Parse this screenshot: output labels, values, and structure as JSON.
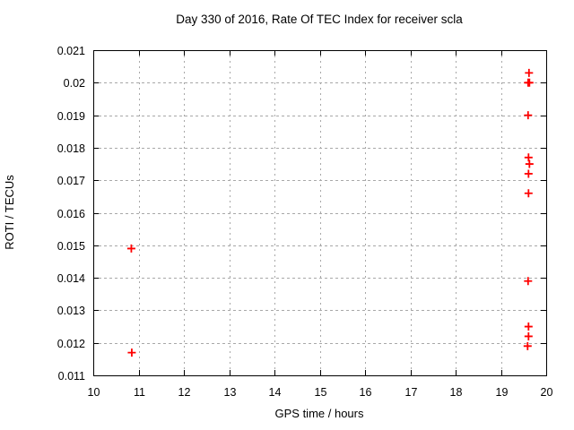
{
  "chart_data": {
    "type": "scatter",
    "title": "Day 330 of 2016, Rate Of TEC Index for receiver scla",
    "xlabel": "GPS time / hours",
    "ylabel": "ROTI / TECUs",
    "xlim": [
      10,
      20
    ],
    "ylim": [
      0.011,
      0.021
    ],
    "xticks": [
      {
        "value": 10,
        "label": "10"
      },
      {
        "value": 11,
        "label": "11"
      },
      {
        "value": 12,
        "label": "12"
      },
      {
        "value": 13,
        "label": "13"
      },
      {
        "value": 14,
        "label": "14"
      },
      {
        "value": 15,
        "label": "15"
      },
      {
        "value": 16,
        "label": "16"
      },
      {
        "value": 17,
        "label": "17"
      },
      {
        "value": 18,
        "label": "18"
      },
      {
        "value": 19,
        "label": "19"
      },
      {
        "value": 20,
        "label": "20"
      }
    ],
    "yticks": [
      {
        "value": 0.011,
        "label": "0.011"
      },
      {
        "value": 0.012,
        "label": "0.012"
      },
      {
        "value": 0.013,
        "label": "0.013"
      },
      {
        "value": 0.014,
        "label": "0.014"
      },
      {
        "value": 0.015,
        "label": "0.015"
      },
      {
        "value": 0.016,
        "label": "0.016"
      },
      {
        "value": 0.017,
        "label": "0.017"
      },
      {
        "value": 0.018,
        "label": "0.018"
      },
      {
        "value": 0.019,
        "label": "0.019"
      },
      {
        "value": 0.02,
        "label": "0.02"
      },
      {
        "value": 0.021,
        "label": "0.021"
      }
    ],
    "grid": true,
    "legend": "none",
    "marker": {
      "shape": "plus",
      "color": "#ff0000",
      "size": 9
    },
    "series": [
      {
        "name": "ROTI",
        "points": [
          [
            10.84,
            0.0149
          ],
          [
            10.85,
            0.0117
          ],
          [
            19.62,
            0.0203
          ],
          [
            19.6,
            0.02
          ],
          [
            19.63,
            0.02
          ],
          [
            19.6,
            0.019
          ],
          [
            19.61,
            0.0177
          ],
          [
            19.63,
            0.0175
          ],
          [
            19.61,
            0.0172
          ],
          [
            19.61,
            0.0166
          ],
          [
            19.6,
            0.0139
          ],
          [
            19.61,
            0.0125
          ],
          [
            19.61,
            0.0122
          ],
          [
            19.59,
            0.0119
          ]
        ]
      }
    ]
  },
  "colors": {
    "background": "#ffffff",
    "axis": "#000000",
    "grid": "#a8a8a8",
    "marker": "#ff0000",
    "text": "#000000"
  }
}
